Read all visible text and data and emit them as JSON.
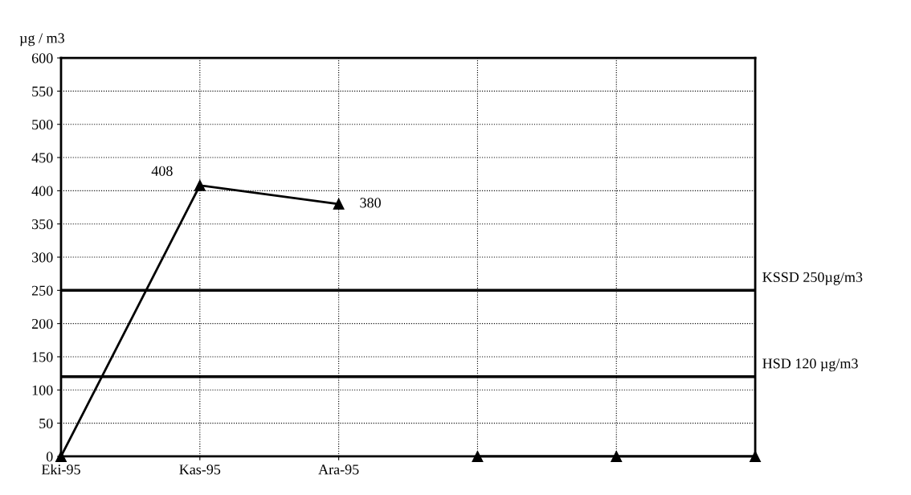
{
  "chart_data": {
    "type": "line",
    "ylabel": "µg / m3",
    "categories": [
      "Eki-95",
      "Kas-95",
      "Ara-95",
      null,
      null,
      null
    ],
    "series": [
      {
        "color": "#000000",
        "values": [
          0,
          408,
          380,
          null,
          null,
          null
        ],
        "value_labels": [
          null,
          "408",
          "380",
          null,
          null,
          null
        ]
      },
      {
        "color": "#000000",
        "values": [
          null,
          null,
          null,
          0,
          0,
          0
        ]
      }
    ],
    "ylim": [
      0,
      600
    ],
    "yticks": [
      0,
      50,
      100,
      150,
      200,
      250,
      300,
      350,
      400,
      450,
      500,
      550,
      600
    ],
    "ref_lines": [
      {
        "axis": "y",
        "value": 250,
        "label": "KSSD 250µg/m3",
        "color": "#000000"
      },
      {
        "axis": "y",
        "value": 120,
        "label": "HSD 120 µg/m3",
        "color": "#000000"
      }
    ],
    "grid": true,
    "marker": "triangle",
    "line_style": "solid",
    "legend": false
  }
}
